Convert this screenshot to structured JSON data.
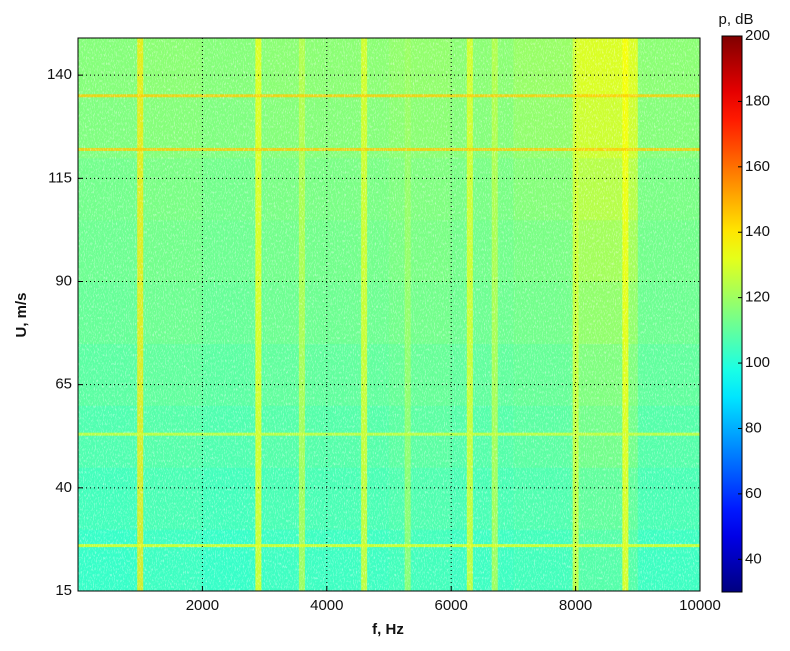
{
  "chart_data": {
    "type": "heatmap",
    "x_label": "f, Hz",
    "y_label": "U, m/s",
    "colorbar_label": "p, dB",
    "xlim": [
      0,
      10000
    ],
    "ylim": [
      15,
      149
    ],
    "xticks": [
      2000,
      4000,
      6000,
      8000,
      10000
    ],
    "yticks": [
      15,
      40,
      65,
      90,
      115,
      140
    ],
    "clim": [
      30,
      200
    ],
    "cticks": [
      40,
      60,
      80,
      100,
      120,
      140,
      160,
      180,
      200
    ],
    "colormap": "jet",
    "grid": true,
    "x_bins": [
      0,
      1000,
      2000,
      3000,
      4000,
      5000,
      6000,
      7000,
      8000,
      9000,
      10000
    ],
    "y_bins": [
      15,
      30,
      45,
      60,
      75,
      90,
      105,
      120,
      135,
      149
    ],
    "z": [
      [
        103,
        104,
        103,
        104,
        104,
        105,
        104,
        105,
        108,
        104
      ],
      [
        105,
        106,
        105,
        106,
        106,
        107,
        106,
        107,
        110,
        106
      ],
      [
        107,
        108,
        107,
        108,
        108,
        109,
        108,
        109,
        113,
        108
      ],
      [
        109,
        110,
        109,
        110,
        110,
        111,
        110,
        111,
        115,
        110
      ],
      [
        111,
        112,
        111,
        112,
        112,
        113,
        112,
        113,
        118,
        112
      ],
      [
        112,
        113,
        112,
        113,
        113,
        114,
        113,
        114,
        121,
        113
      ],
      [
        113,
        114,
        113,
        114,
        114,
        115,
        114,
        116,
        124,
        114
      ],
      [
        115,
        116,
        115,
        116,
        116,
        117,
        116,
        118,
        128,
        116
      ],
      [
        116,
        117,
        116,
        117,
        117,
        118,
        117,
        119,
        130,
        117
      ]
    ],
    "v_tones": [
      {
        "f": 1000,
        "level": 140
      },
      {
        "f": 2900,
        "level": 135
      },
      {
        "f": 3600,
        "level": 125
      },
      {
        "f": 4600,
        "level": 132
      },
      {
        "f": 5300,
        "level": 120
      },
      {
        "f": 6300,
        "level": 132
      },
      {
        "f": 6700,
        "level": 125
      },
      {
        "f": 8000,
        "level": 130
      },
      {
        "f": 8800,
        "level": 136
      }
    ],
    "h_tones": [
      {
        "U": 135,
        "level": 145
      },
      {
        "U": 122,
        "level": 145
      },
      {
        "U": 53,
        "level": 128
      },
      {
        "U": 26,
        "level": 132
      }
    ]
  }
}
